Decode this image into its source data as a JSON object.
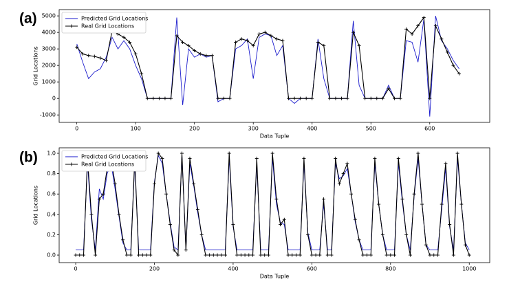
{
  "chart_data": [
    {
      "type": "line",
      "panel_label": "(a)",
      "xlabel": "Data Tuple",
      "ylabel": "Grid Locations",
      "xlim": [
        -30,
        702
      ],
      "ylim": [
        -1450,
        5380
      ],
      "xticks": [
        0,
        100,
        200,
        300,
        400,
        500,
        600
      ],
      "yticks": [
        -1000,
        0,
        1000,
        2000,
        3000,
        4000,
        5000
      ],
      "legend": "upper left",
      "x": [
        0,
        10,
        20,
        30,
        40,
        50,
        60,
        70,
        80,
        90,
        100,
        110,
        120,
        130,
        140,
        150,
        160,
        170,
        180,
        190,
        200,
        210,
        220,
        230,
        240,
        250,
        260,
        270,
        280,
        290,
        300,
        310,
        320,
        330,
        340,
        350,
        360,
        370,
        380,
        390,
        400,
        410,
        420,
        430,
        440,
        450,
        460,
        470,
        480,
        490,
        500,
        510,
        520,
        530,
        540,
        550,
        560,
        570,
        580,
        590,
        600,
        610,
        620,
        630,
        640,
        650
      ],
      "series": [
        {
          "name": "Predicted Grid Locations",
          "color": "#1a1acc",
          "marker": false,
          "values": [
            3300,
            2200,
            1200,
            1600,
            1800,
            2500,
            3700,
            3000,
            3500,
            3000,
            2000,
            1200,
            0,
            0,
            0,
            0,
            0,
            4900,
            -400,
            3000,
            2500,
            2700,
            2500,
            2600,
            -200,
            0,
            0,
            3000,
            3200,
            3600,
            1200,
            3700,
            3900,
            3800,
            2600,
            3200,
            0,
            -300,
            0,
            0,
            0,
            3600,
            1200,
            0,
            0,
            0,
            0,
            4700,
            800,
            0,
            0,
            0,
            0,
            800,
            0,
            0,
            3500,
            3400,
            2200,
            4800,
            -1100,
            5000,
            3500,
            3000,
            2300,
            1800
          ]
        },
        {
          "name": "Real Grid Locations",
          "color": "#000000",
          "marker": true,
          "values": [
            3100,
            2700,
            2600,
            2550,
            2450,
            2300,
            4100,
            3900,
            3700,
            3400,
            2700,
            1500,
            0,
            0,
            0,
            0,
            0,
            3800,
            3400,
            3200,
            2900,
            2700,
            2600,
            2600,
            0,
            0,
            0,
            3400,
            3600,
            3500,
            3200,
            3900,
            4000,
            3800,
            3600,
            3500,
            0,
            0,
            0,
            0,
            0,
            3400,
            3200,
            0,
            0,
            0,
            0,
            4000,
            3200,
            0,
            0,
            0,
            0,
            600,
            0,
            0,
            4200,
            3900,
            4400,
            4900,
            0,
            4400,
            3600,
            2800,
            2000,
            1500
          ]
        }
      ]
    },
    {
      "type": "line",
      "panel_label": "(b)",
      "xlabel": "Data Tuple",
      "ylabel": "Grid Locations",
      "xlim": [
        -42,
        1052
      ],
      "ylim": [
        -0.074,
        1.054
      ],
      "xticks": [
        0,
        200,
        400,
        600,
        800,
        1000
      ],
      "yticks": [
        {
          "value": 0,
          "label": "0.0"
        },
        0.2,
        0.4,
        0.6,
        0.8,
        {
          "value": 1,
          "label": "1.0"
        }
      ],
      "legend": "upper left",
      "x": [
        0,
        10,
        20,
        30,
        40,
        50,
        60,
        70,
        80,
        90,
        100,
        110,
        120,
        130,
        140,
        150,
        160,
        170,
        180,
        190,
        200,
        210,
        220,
        230,
        240,
        250,
        260,
        270,
        280,
        290,
        300,
        310,
        320,
        330,
        340,
        350,
        360,
        370,
        380,
        390,
        400,
        410,
        420,
        430,
        440,
        450,
        460,
        470,
        480,
        490,
        500,
        510,
        520,
        530,
        540,
        550,
        560,
        570,
        580,
        590,
        600,
        610,
        620,
        630,
        640,
        650,
        660,
        670,
        680,
        690,
        700,
        710,
        720,
        730,
        740,
        750,
        760,
        770,
        780,
        790,
        800,
        810,
        820,
        830,
        840,
        850,
        860,
        870,
        880,
        890,
        900,
        910,
        920,
        930,
        940,
        950,
        960,
        970,
        980,
        990,
        1000
      ],
      "series": [
        {
          "name": "Predicted Grid Locations",
          "color": "#1a1acc",
          "marker": false,
          "values": [
            0.05,
            0.05,
            0.05,
            0.9,
            0.35,
            0.05,
            0.65,
            0.55,
            0.8,
            0.9,
            0.65,
            0.38,
            0.12,
            0.05,
            0.05,
            0.9,
            0.05,
            0.05,
            0.05,
            0.05,
            0.72,
            0.98,
            0.9,
            0.6,
            0.32,
            0.08,
            0.05,
            0.98,
            0.06,
            0.9,
            0.68,
            0.42,
            0.2,
            0.05,
            0.05,
            0.05,
            0.05,
            0.05,
            0.05,
            0.95,
            0.28,
            0.05,
            0.05,
            0.05,
            0.05,
            0.05,
            0.9,
            0.05,
            0.05,
            0.05,
            0.95,
            0.5,
            0.32,
            0.3,
            0.05,
            0.05,
            0.05,
            0.05,
            0.9,
            0.22,
            0.05,
            0.05,
            0.05,
            0.5,
            0.05,
            0.05,
            0.9,
            0.75,
            0.78,
            0.85,
            0.6,
            0.33,
            0.15,
            0.05,
            0.05,
            0.05,
            0.9,
            0.5,
            0.2,
            0.05,
            0.05,
            0.05,
            0.9,
            0.52,
            0.2,
            0.05,
            0.58,
            0.95,
            0.5,
            0.1,
            0.05,
            0.05,
            0.05,
            0.45,
            0.85,
            0.28,
            0.05,
            0.95,
            0.5,
            0.12,
            0.05
          ]
        },
        {
          "name": "Real Grid Locations",
          "color": "#000000",
          "marker": true,
          "values": [
            0,
            0,
            0,
            0.95,
            0.4,
            0,
            0.55,
            0.6,
            0.85,
            0.95,
            0.7,
            0.4,
            0.15,
            0,
            0,
            0.95,
            0,
            0,
            0,
            0,
            0.7,
            1.0,
            0.95,
            0.6,
            0.3,
            0.05,
            0,
            1.0,
            0.05,
            0.95,
            0.7,
            0.45,
            0.2,
            0,
            0,
            0,
            0,
            0,
            0,
            1.0,
            0.3,
            0,
            0,
            0,
            0,
            0,
            0.95,
            0,
            0,
            0,
            1.0,
            0.55,
            0.3,
            0.35,
            0,
            0,
            0,
            0,
            0.95,
            0.2,
            0,
            0,
            0,
            0.55,
            0,
            0,
            0.95,
            0.7,
            0.8,
            0.9,
            0.6,
            0.35,
            0.15,
            0,
            0,
            0,
            0.95,
            0.5,
            0.2,
            0,
            0,
            0,
            0.95,
            0.55,
            0.2,
            0,
            0.6,
            1.0,
            0.5,
            0.1,
            0,
            0,
            0,
            0.5,
            0.9,
            0.3,
            0,
            1.0,
            0.5,
            0.1,
            0
          ]
        }
      ]
    }
  ]
}
